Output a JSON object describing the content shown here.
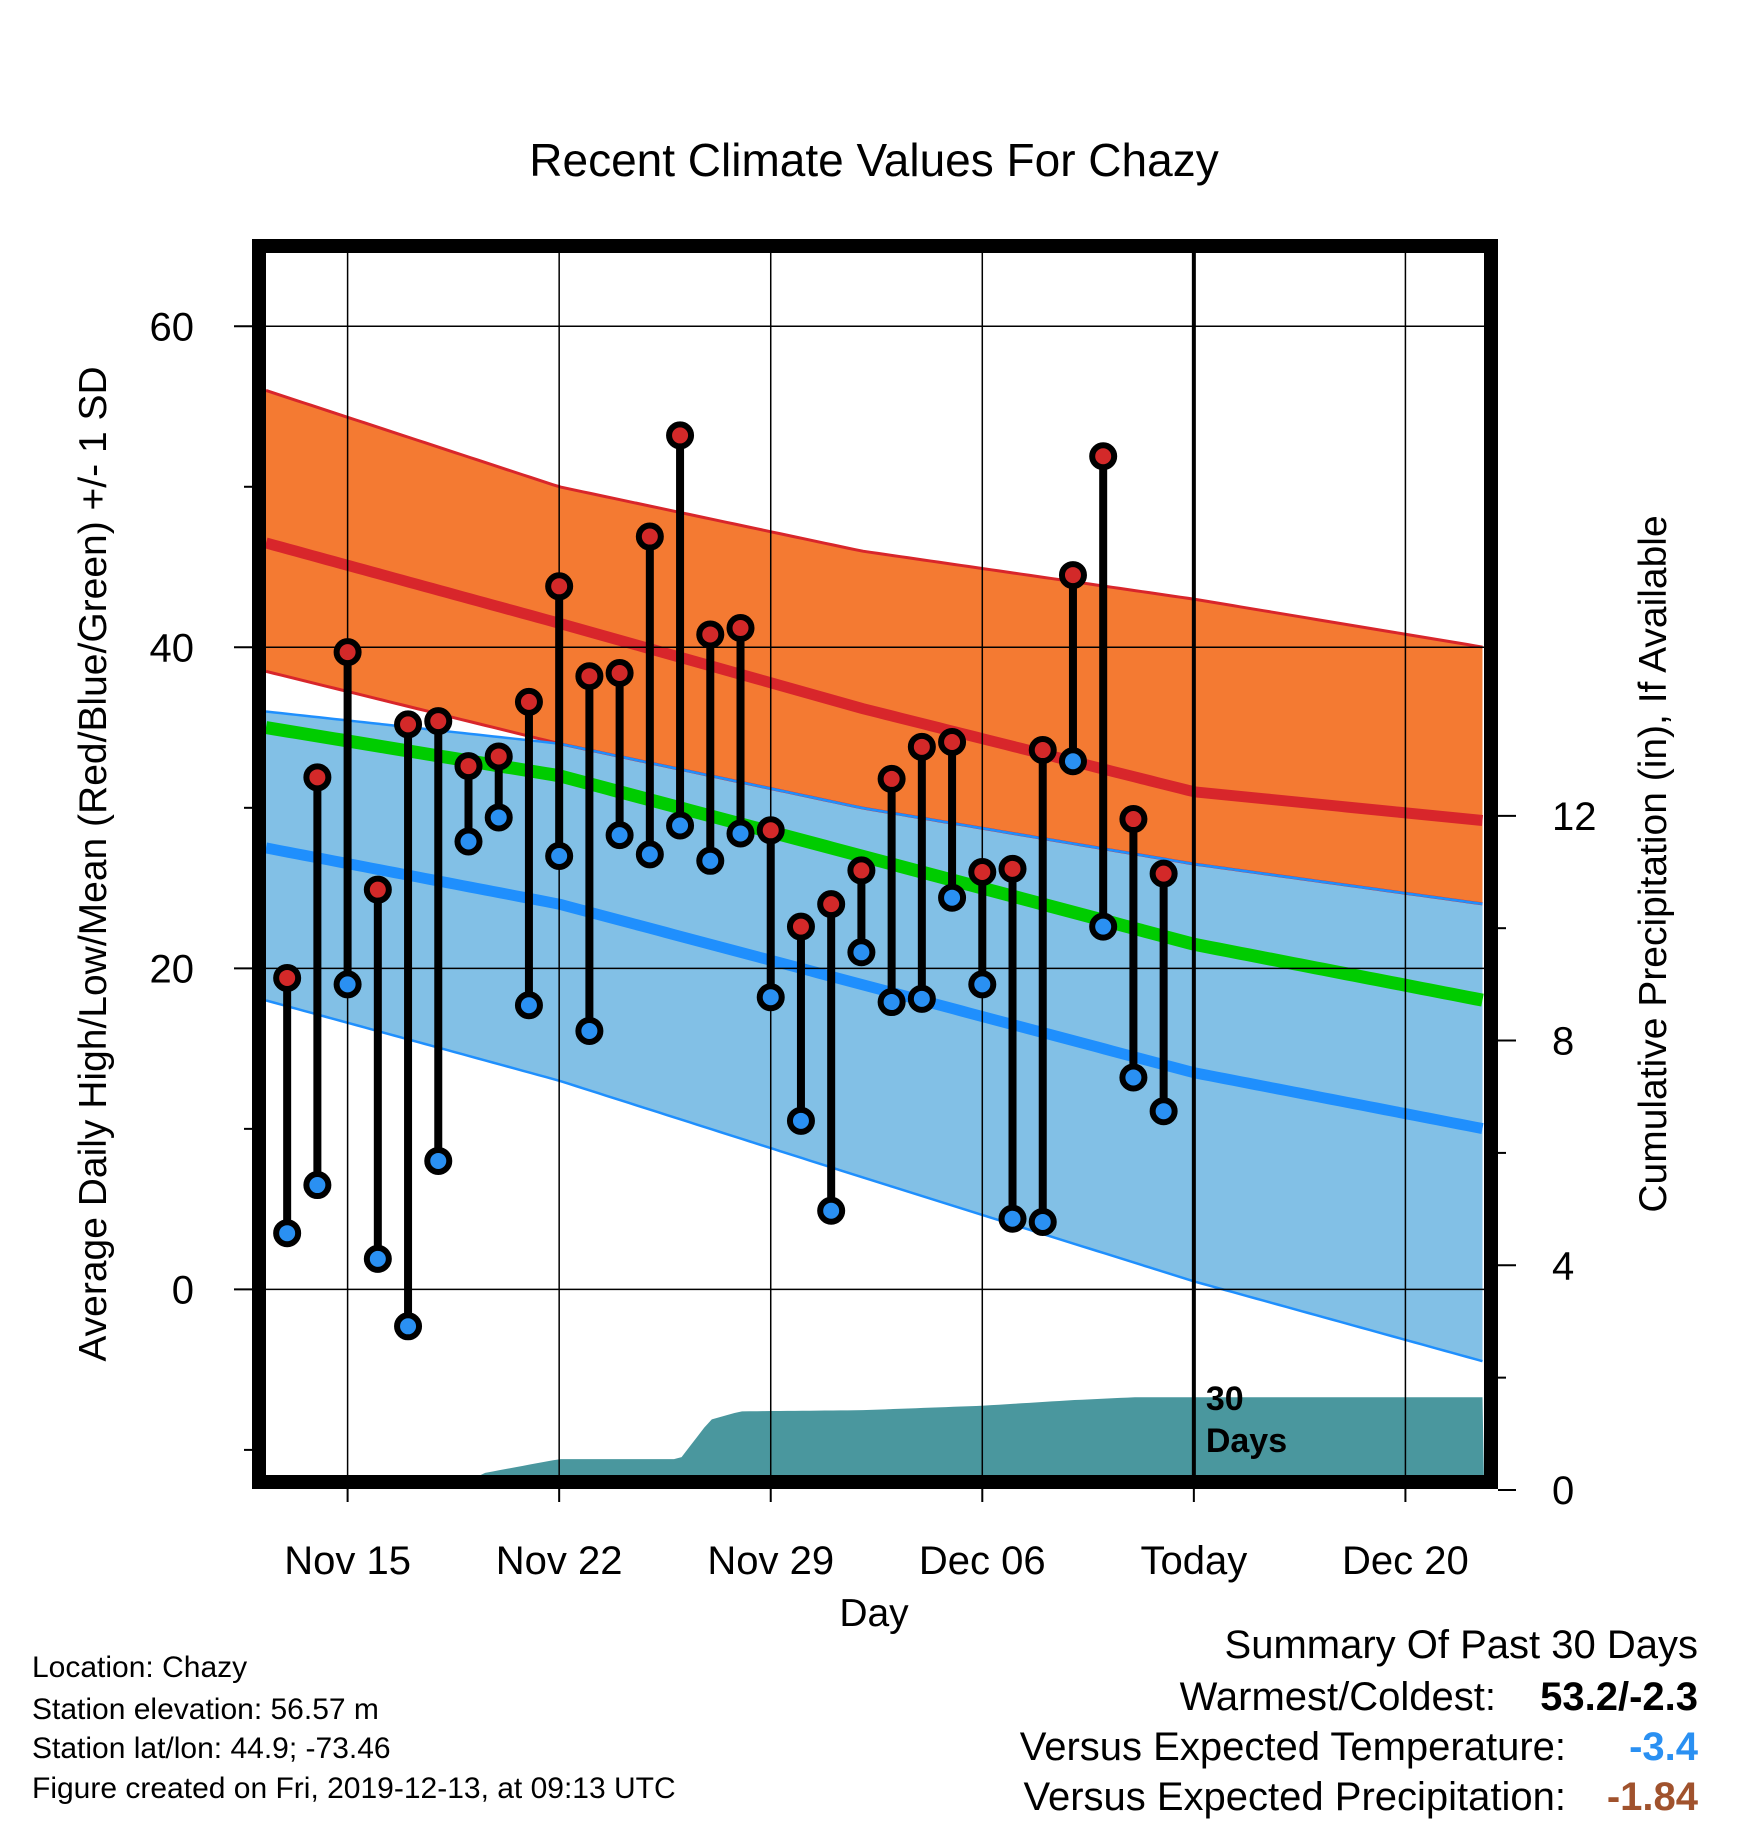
{
  "chart_data": {
    "type": "line",
    "title": "Recent Climate Values For Chazy",
    "xlabel": "Day",
    "ylabel_left": "Average Daily High/Low/Mean (Red/Blue/Green) +/- 1 SD",
    "ylabel_right": "Cumulative Precipitation (in), If Available",
    "x_tick_labels": [
      {
        "day": 3,
        "label": "Nov 15"
      },
      {
        "day": 10,
        "label": "Nov 22"
      },
      {
        "day": 17,
        "label": "Nov 29"
      },
      {
        "day": 24,
        "label": "Dec 06"
      },
      {
        "day": 31,
        "label": "Today"
      },
      {
        "day": 38,
        "label": "Dec 20"
      }
    ],
    "x_range": [
      0.3,
      40.6
    ],
    "ylim_left": [
      -12,
      65
    ],
    "y_ticks_left": [
      0,
      20,
      40,
      60
    ],
    "ylim_right": [
      0,
      22
    ],
    "y_ticks_right": [
      0,
      4,
      8,
      12
    ],
    "grid": true,
    "today_day": 31,
    "today_label": "30 Days",
    "expected_high": {
      "days": [
        0.3,
        10,
        20,
        31,
        40.6
      ],
      "mean": [
        46.5,
        41.5,
        36.2,
        31.0,
        29.2
      ],
      "sd_upper": [
        56.0,
        50.0,
        46.0,
        43.0,
        40.0
      ],
      "sd_lower": [
        38.5,
        34.0,
        30.0,
        26.5,
        24.0
      ]
    },
    "expected_low": {
      "days": [
        0.3,
        10,
        20,
        31,
        40.6
      ],
      "mean": [
        27.5,
        24.0,
        19.0,
        13.5,
        10.0
      ],
      "sd_upper": [
        36.0,
        34.0,
        30.0,
        26.5,
        24.0
      ],
      "sd_lower": [
        18.0,
        13.0,
        7.0,
        0.5,
        -4.5
      ]
    },
    "expected_mean": {
      "days": [
        0.3,
        10,
        20,
        31,
        40.6
      ],
      "values": [
        35.0,
        32.0,
        27.0,
        21.5,
        18.0
      ]
    },
    "observed": {
      "days": [
        1,
        2,
        3,
        4,
        5,
        6,
        7,
        8,
        9,
        10,
        11,
        12,
        13,
        14,
        15,
        16,
        17,
        18,
        19,
        20,
        21,
        22,
        23,
        24,
        25,
        26,
        27,
        28,
        29,
        30
      ],
      "high": [
        19.4,
        31.9,
        39.7,
        24.9,
        35.2,
        35.4,
        32.6,
        33.2,
        36.6,
        43.8,
        38.2,
        38.4,
        46.9,
        53.2,
        40.8,
        41.2,
        28.6,
        22.6,
        24.0,
        26.1,
        31.8,
        33.8,
        34.1,
        26.0,
        26.2,
        33.6,
        44.5,
        51.9,
        29.3,
        25.9
      ],
      "low": [
        3.5,
        6.5,
        19.0,
        1.9,
        -2.3,
        8.0,
        27.9,
        29.4,
        17.7,
        27.0,
        16.1,
        28.3,
        27.1,
        28.9,
        26.7,
        28.4,
        18.2,
        10.5,
        4.9,
        21.0,
        17.9,
        18.1,
        24.4,
        19.0,
        4.4,
        4.2,
        32.9,
        22.6,
        13.2,
        11.1
      ]
    },
    "precip": {
      "days": [
        0.3,
        6.5,
        7.5,
        9,
        10,
        14,
        15,
        16,
        20,
        24,
        27,
        29,
        31,
        40.6
      ],
      "cum": [
        0,
        0,
        0.3,
        0.45,
        0.55,
        0.55,
        1.25,
        1.4,
        1.42,
        1.5,
        1.6,
        1.65,
        1.65,
        1.65
      ]
    },
    "colors": {
      "high_band": "#f47a32",
      "high_line": "#d8262b",
      "low_band": "#82c0e6",
      "low_line": "#1f8ffd",
      "overlap": "#8f151b",
      "mean_line": "#00cc00",
      "precip": "#4a979e",
      "obs_high": "#d32929",
      "obs_low": "#2a90f2"
    }
  },
  "footer": {
    "location": "Location: Chazy",
    "elevation": "Station elevation: 56.57 m",
    "latlon": "Station lat/lon: 44.9; -73.46",
    "created": "Figure created on Fri, 2019-12-13, at 09:13 UTC"
  },
  "summary": {
    "heading": "Summary Of Past 30 Days",
    "warmest_coldest_label": "Warmest/Coldest:",
    "warmest_coldest_value": "53.2/-2.3",
    "vs_temp_label": "Versus Expected Temperature:",
    "vs_temp_value": "-3.4",
    "vs_temp_color": "#2a90f2",
    "vs_precip_label": "Versus Expected Precipitation:",
    "vs_precip_value": "-1.84",
    "vs_precip_color": "#a0522d"
  }
}
